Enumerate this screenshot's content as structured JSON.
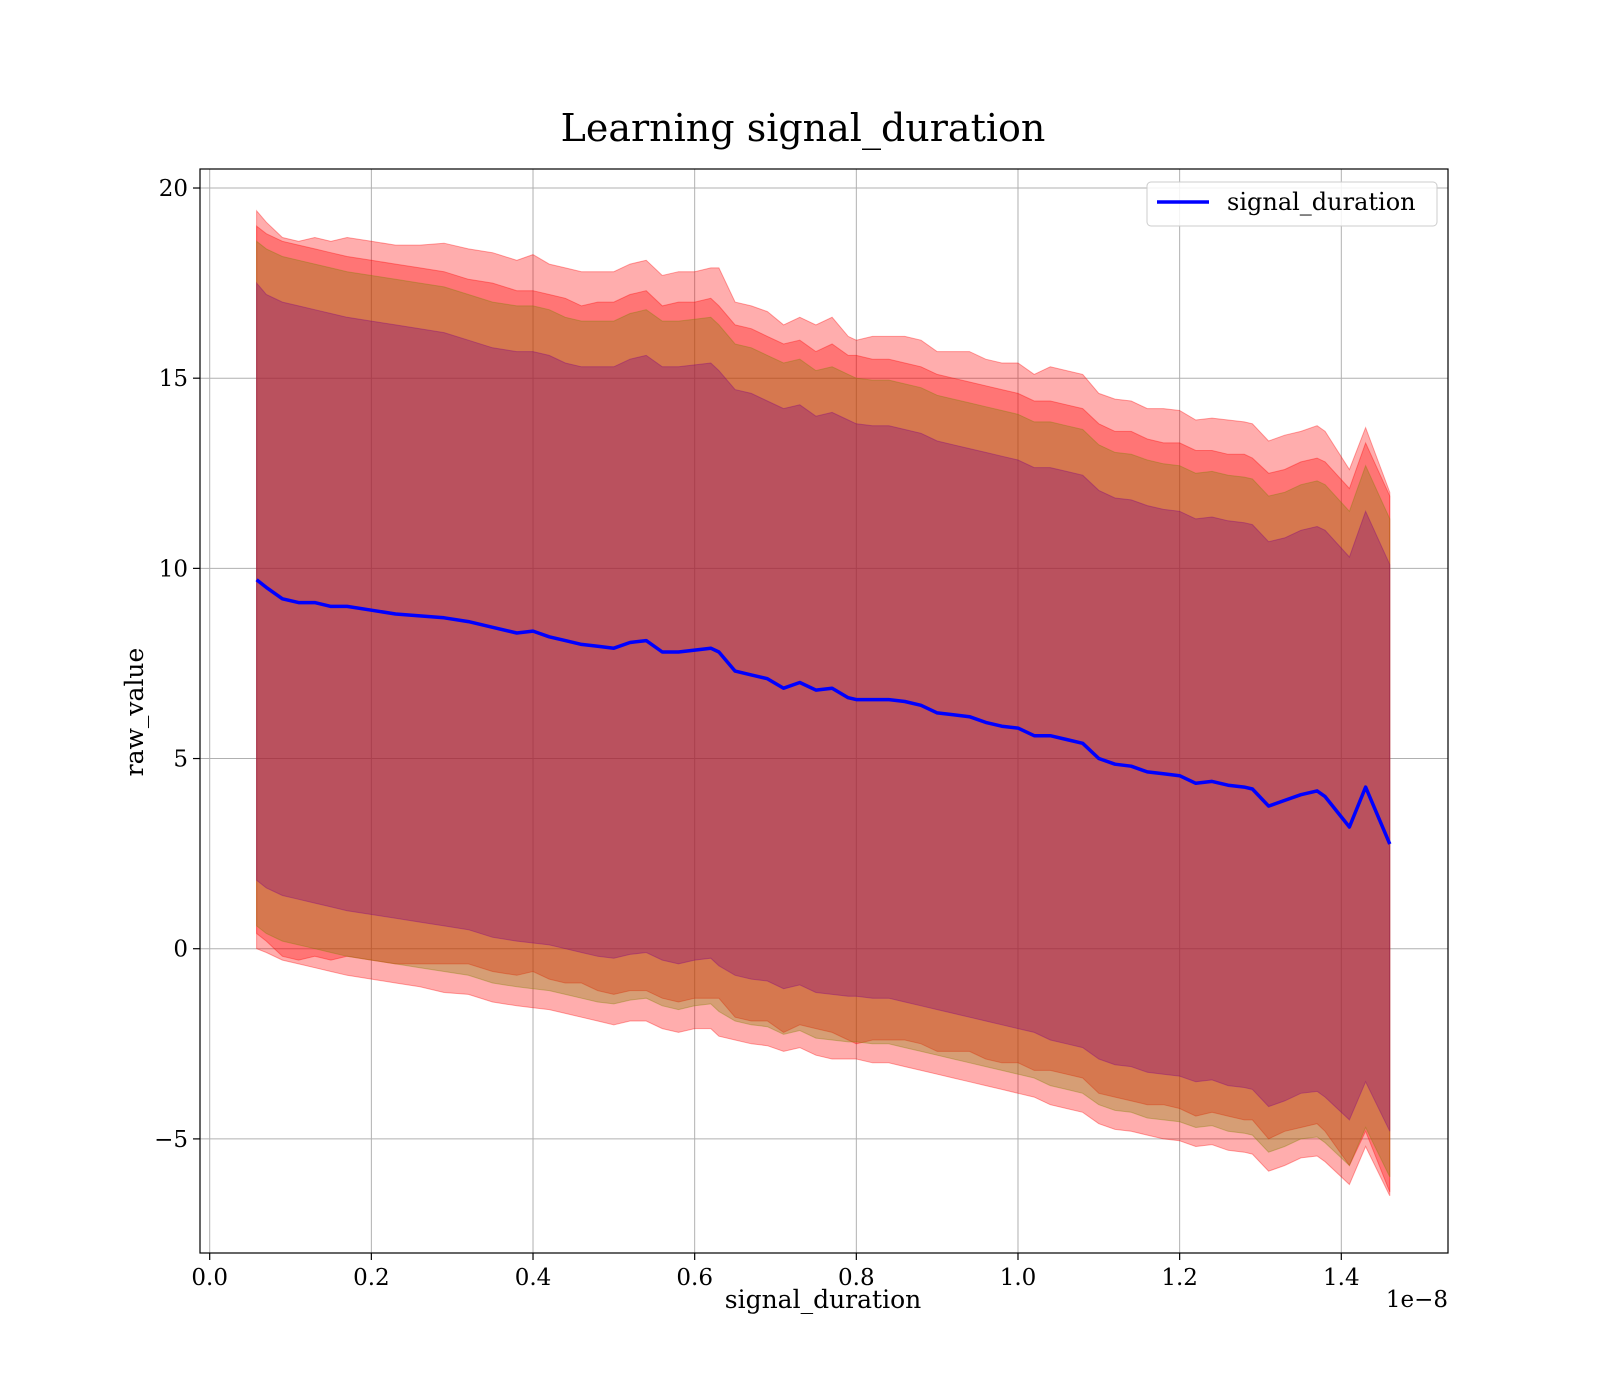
{
  "chart_data": {
    "type": "line",
    "title": "Learning signal_duration",
    "xlabel": "signal_duration",
    "ylabel": "raw_value",
    "x_offset_label": "1e−8",
    "xlim": [
      -0.012,
      1.532
    ],
    "ylim": [
      -8,
      20.5
    ],
    "x_ticks": [
      0.0,
      0.2,
      0.4,
      0.6,
      0.8,
      1.0,
      1.2,
      1.4
    ],
    "x_tick_labels": [
      "0.0",
      "0.2",
      "0.4",
      "0.6",
      "0.8",
      "1.0",
      "1.2",
      "1.4"
    ],
    "y_ticks": [
      -5,
      0,
      5,
      10,
      15,
      20
    ],
    "y_tick_labels": [
      "−5",
      "0",
      "5",
      "10",
      "15",
      "20"
    ],
    "grid": true,
    "legend_position": "top-right",
    "series": [
      {
        "name": "signal_duration",
        "color": "#0000ff",
        "x": [
          0.058,
          0.07,
          0.09,
          0.11,
          0.13,
          0.15,
          0.17,
          0.2,
          0.23,
          0.26,
          0.29,
          0.32,
          0.35,
          0.38,
          0.4,
          0.42,
          0.44,
          0.46,
          0.48,
          0.5,
          0.52,
          0.54,
          0.56,
          0.58,
          0.6,
          0.62,
          0.63,
          0.65,
          0.67,
          0.69,
          0.71,
          0.73,
          0.75,
          0.77,
          0.79,
          0.8,
          0.82,
          0.84,
          0.86,
          0.88,
          0.9,
          0.92,
          0.94,
          0.96,
          0.98,
          1.0,
          1.02,
          1.04,
          1.06,
          1.08,
          1.1,
          1.12,
          1.14,
          1.16,
          1.18,
          1.2,
          1.22,
          1.24,
          1.26,
          1.28,
          1.29,
          1.31,
          1.33,
          1.35,
          1.37,
          1.38,
          1.41,
          1.43,
          1.46
        ],
        "values": [
          9.7,
          9.5,
          9.2,
          9.1,
          9.1,
          9.0,
          9.0,
          8.9,
          8.8,
          8.75,
          8.7,
          8.6,
          8.45,
          8.3,
          8.35,
          8.2,
          8.1,
          8.0,
          7.95,
          7.9,
          8.05,
          8.1,
          7.8,
          7.8,
          7.85,
          7.9,
          7.8,
          7.3,
          7.2,
          7.1,
          6.85,
          7.0,
          6.8,
          6.85,
          6.6,
          6.55,
          6.55,
          6.55,
          6.5,
          6.4,
          6.2,
          6.15,
          6.1,
          5.95,
          5.85,
          5.8,
          5.6,
          5.6,
          5.5,
          5.4,
          5.0,
          4.85,
          4.8,
          4.65,
          4.6,
          4.55,
          4.35,
          4.4,
          4.3,
          4.25,
          4.2,
          3.75,
          3.9,
          4.05,
          4.15,
          4.0,
          3.2,
          4.25,
          2.75
        ]
      }
    ],
    "bands": [
      {
        "color": "#ff0000",
        "opacity": 0.32,
        "lower": [
          0.0,
          -0.1,
          -0.3,
          -0.4,
          -0.5,
          -0.6,
          -0.7,
          -0.8,
          -0.9,
          -1.0,
          -1.15,
          -1.2,
          -1.4,
          -1.5,
          -1.55,
          -1.6,
          -1.7,
          -1.8,
          -1.9,
          -2.0,
          -1.9,
          -1.9,
          -2.1,
          -2.2,
          -2.1,
          -2.1,
          -2.3,
          -2.4,
          -2.5,
          -2.55,
          -2.7,
          -2.6,
          -2.8,
          -2.9,
          -2.9,
          -2.9,
          -3.0,
          -3.0,
          -3.1,
          -3.2,
          -3.3,
          -3.4,
          -3.5,
          -3.6,
          -3.7,
          -3.8,
          -3.9,
          -4.1,
          -4.2,
          -4.3,
          -4.6,
          -4.75,
          -4.8,
          -4.9,
          -5.0,
          -5.05,
          -5.2,
          -5.15,
          -5.3,
          -5.35,
          -5.4,
          -5.85,
          -5.7,
          -5.5,
          -5.45,
          -5.6,
          -6.2,
          -5.2,
          -6.5
        ]
      },
      {
        "color": "#ff0000",
        "opacity": 0.32,
        "upper": [
          19.0,
          18.8,
          18.6,
          18.5,
          18.4,
          18.3,
          18.2,
          18.1,
          18.0,
          17.9,
          17.8,
          17.6,
          17.5,
          17.3,
          17.3,
          17.2,
          17.1,
          16.9,
          17.0,
          17.0,
          17.2,
          17.3,
          16.9,
          17.0,
          17.0,
          17.1,
          16.9,
          16.4,
          16.3,
          16.1,
          15.9,
          16.0,
          15.7,
          15.9,
          15.6,
          15.6,
          15.5,
          15.5,
          15.4,
          15.3,
          15.1,
          15.0,
          14.9,
          14.8,
          14.7,
          14.6,
          14.4,
          14.4,
          14.3,
          14.2,
          13.8,
          13.6,
          13.6,
          13.4,
          13.3,
          13.3,
          13.1,
          13.1,
          13.0,
          13.0,
          12.9,
          12.5,
          12.6,
          12.8,
          12.9,
          12.8,
          12.1,
          13.3,
          11.9
        ]
      },
      {
        "color": "#808000",
        "opacity": 0.32,
        "lower": [
          0.6,
          0.4,
          0.2,
          0.1,
          0.0,
          -0.1,
          -0.2,
          -0.3,
          -0.4,
          -0.5,
          -0.6,
          -0.7,
          -0.9,
          -1.0,
          -1.05,
          -1.1,
          -1.2,
          -1.3,
          -1.4,
          -1.45,
          -1.35,
          -1.3,
          -1.5,
          -1.6,
          -1.5,
          -1.45,
          -1.65,
          -1.9,
          -2.0,
          -2.05,
          -2.25,
          -2.15,
          -2.35,
          -2.4,
          -2.45,
          -2.45,
          -2.5,
          -2.5,
          -2.6,
          -2.7,
          -2.8,
          -2.9,
          -3.0,
          -3.1,
          -3.2,
          -3.3,
          -3.4,
          -3.6,
          -3.7,
          -3.8,
          -4.1,
          -4.25,
          -4.3,
          -4.45,
          -4.5,
          -4.55,
          -4.7,
          -4.65,
          -4.8,
          -4.85,
          -4.9,
          -5.35,
          -5.2,
          -5.0,
          -4.95,
          -5.1,
          -5.7,
          -4.7,
          -6.0
        ],
        "upper": [
          18.6,
          18.4,
          18.2,
          18.1,
          18.0,
          17.9,
          17.8,
          17.7,
          17.6,
          17.5,
          17.4,
          17.2,
          17.0,
          16.9,
          16.9,
          16.8,
          16.6,
          16.5,
          16.5,
          16.5,
          16.7,
          16.8,
          16.5,
          16.5,
          16.55,
          16.6,
          16.4,
          15.9,
          15.8,
          15.6,
          15.4,
          15.5,
          15.2,
          15.3,
          15.1,
          15.0,
          14.95,
          14.95,
          14.85,
          14.75,
          14.55,
          14.45,
          14.35,
          14.25,
          14.15,
          14.05,
          13.85,
          13.85,
          13.75,
          13.65,
          13.25,
          13.05,
          13.0,
          12.85,
          12.75,
          12.7,
          12.5,
          12.55,
          12.45,
          12.4,
          12.35,
          11.9,
          12.0,
          12.2,
          12.3,
          12.2,
          11.5,
          12.7,
          11.3
        ]
      },
      {
        "color": "#800080",
        "opacity": 0.32,
        "lower": [
          1.8,
          1.6,
          1.4,
          1.3,
          1.2,
          1.1,
          1.0,
          0.9,
          0.8,
          0.7,
          0.6,
          0.5,
          0.3,
          0.2,
          0.15,
          0.1,
          0.0,
          -0.1,
          -0.2,
          -0.25,
          -0.15,
          -0.1,
          -0.3,
          -0.4,
          -0.3,
          -0.25,
          -0.45,
          -0.7,
          -0.8,
          -0.85,
          -1.05,
          -0.95,
          -1.15,
          -1.2,
          -1.25,
          -1.25,
          -1.3,
          -1.3,
          -1.4,
          -1.5,
          -1.6,
          -1.7,
          -1.8,
          -1.9,
          -2.0,
          -2.1,
          -2.2,
          -2.4,
          -2.5,
          -2.6,
          -2.9,
          -3.05,
          -3.1,
          -3.25,
          -3.3,
          -3.35,
          -3.5,
          -3.45,
          -3.6,
          -3.65,
          -3.7,
          -4.15,
          -4.0,
          -3.8,
          -3.75,
          -3.9,
          -4.5,
          -3.5,
          -4.8
        ],
        "upper": [
          17.5,
          17.2,
          17.0,
          16.9,
          16.8,
          16.7,
          16.6,
          16.5,
          16.4,
          16.3,
          16.2,
          16.0,
          15.8,
          15.7,
          15.7,
          15.6,
          15.4,
          15.3,
          15.3,
          15.3,
          15.5,
          15.6,
          15.3,
          15.3,
          15.35,
          15.4,
          15.2,
          14.7,
          14.6,
          14.4,
          14.2,
          14.3,
          14.0,
          14.1,
          13.9,
          13.8,
          13.75,
          13.75,
          13.65,
          13.55,
          13.35,
          13.25,
          13.15,
          13.05,
          12.95,
          12.85,
          12.65,
          12.65,
          12.55,
          12.45,
          12.05,
          11.85,
          11.8,
          11.65,
          11.55,
          11.5,
          11.3,
          11.35,
          11.25,
          11.2,
          11.15,
          10.7,
          10.8,
          11.0,
          11.1,
          11.0,
          10.3,
          11.5,
          10.1
        ]
      }
    ]
  }
}
